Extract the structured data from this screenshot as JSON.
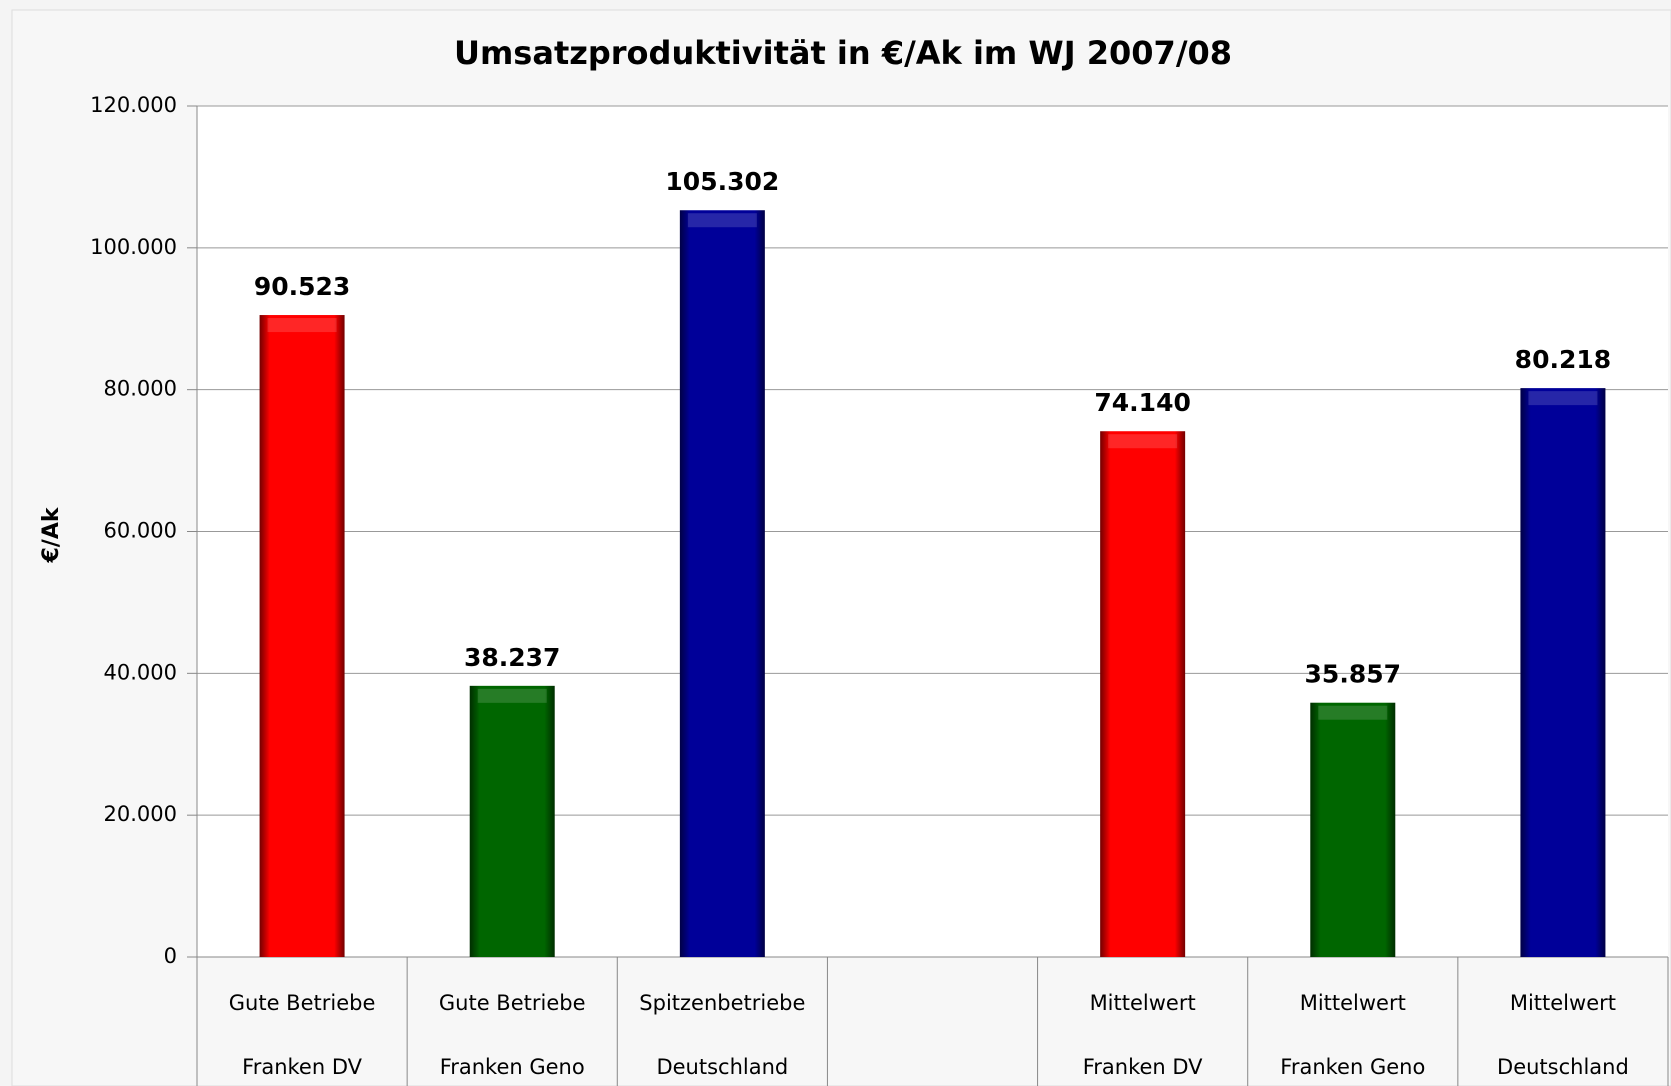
{
  "chart_data": {
    "type": "bar",
    "title": "Umsatzproduktivität in €/Ak im WJ 2007/08",
    "y_label": "€/Ak",
    "categories": [
      [
        "Gute Betriebe",
        "Franken DV"
      ],
      [
        "Gute Betriebe",
        "Franken Geno"
      ],
      [
        "Spitzenbetriebe",
        "Deutschland"
      ],
      null,
      [
        "Mittelwert",
        "Franken DV"
      ],
      [
        "Mittelwert",
        "Franken Geno"
      ],
      [
        "Mittelwert",
        "Deutschland"
      ]
    ],
    "values": [
      90523,
      38237,
      105302,
      null,
      74140,
      35857,
      80218
    ],
    "value_labels": [
      "90.523",
      "38.237",
      "105.302",
      null,
      "74.140",
      "35.857",
      "80.218"
    ],
    "colors": [
      "#ff0000",
      "#006600",
      "#000099",
      null,
      "#ff0000",
      "#006600",
      "#000099"
    ],
    "ylim": [
      0,
      120000
    ],
    "yticks": [
      0,
      {
        "value": 20000,
        "label": "20.000"
      },
      {
        "value": 40000,
        "label": "40.000"
      },
      {
        "value": 60000,
        "label": "60.000"
      },
      {
        "value": 80000,
        "label": "80.000"
      },
      {
        "value": 100000,
        "label": "100.000"
      },
      {
        "value": 120000,
        "label": "120.000"
      }
    ],
    "grid": true
  }
}
